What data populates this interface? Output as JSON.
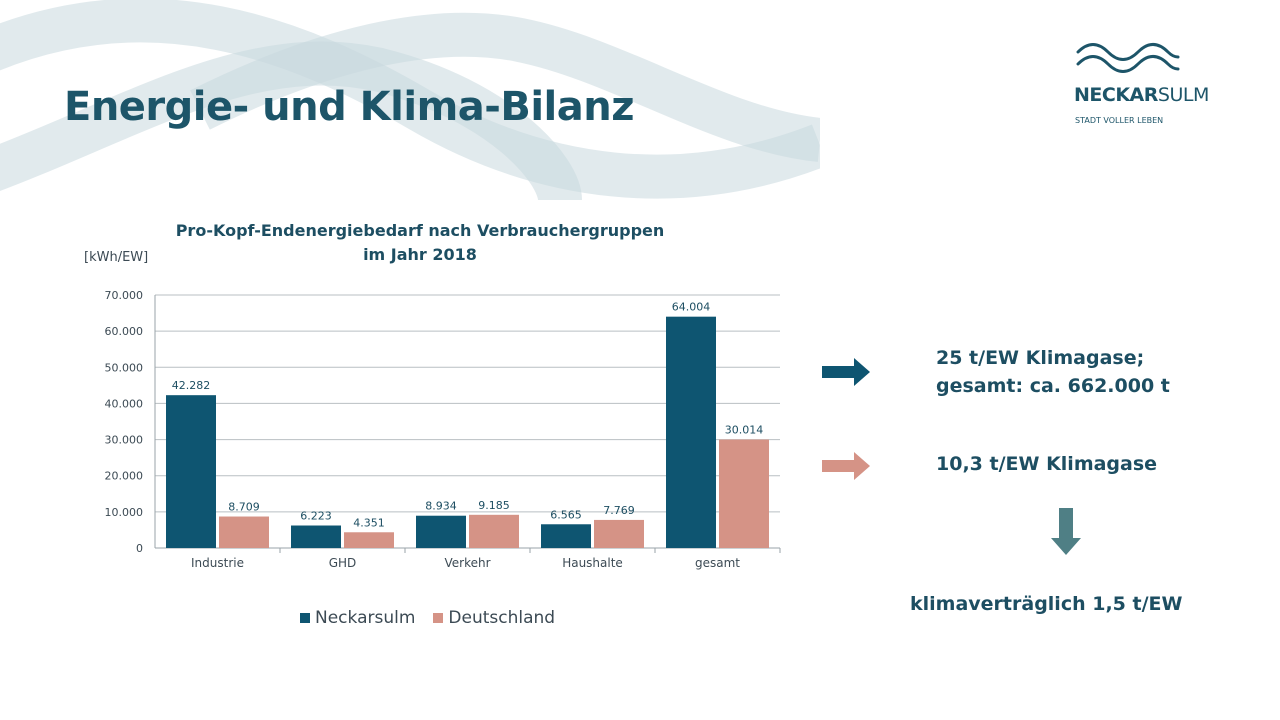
{
  "slide": {
    "title": "Energie- und Klima-Bilanz"
  },
  "logo": {
    "word_bold": "NECKAR",
    "word_regular": "SULM",
    "tagline": "STADT VOLLER LEBEN"
  },
  "chart_data": {
    "type": "bar",
    "title_line1": "Pro-Kopf-Endenergiebedarf nach Verbrauchergruppen",
    "title_line2": "im Jahr 2018",
    "ylabel": "[kWh/EW]",
    "categories": [
      "Industrie",
      "GHD",
      "Verkehr",
      "Haushalte",
      "gesamt"
    ],
    "series": [
      {
        "name": "Neckarsulm",
        "color": "#0e5571",
        "values": [
          42282,
          6223,
          8934,
          6565,
          64004
        ]
      },
      {
        "name": "Deutschland",
        "color": "#d59386",
        "values": [
          8709,
          4351,
          9185,
          7769,
          30014
        ]
      }
    ],
    "value_labels": [
      [
        "42.282",
        "6.223",
        "8.934",
        "6.565",
        "64.004"
      ],
      [
        "8.709",
        "4.351",
        "9.185",
        "7.769",
        "30.014"
      ]
    ],
    "ylim": [
      0,
      70000
    ],
    "yticks": [
      0,
      10000,
      20000,
      30000,
      40000,
      50000,
      60000,
      70000
    ],
    "ytick_labels": [
      "0",
      "10.000",
      "20.000",
      "30.000",
      "40.000",
      "50.000",
      "60.000",
      "70.000"
    ],
    "grid": true,
    "legend_position": "bottom"
  },
  "statements": {
    "neckarsulm_line1": "25 t/EW Klimagase;",
    "neckarsulm_line2": "gesamt: ca. 662.000 t",
    "deutschland": "10,3 t/EW Klimagase",
    "target": "klimaverträglich 1,5 t/EW"
  },
  "colors": {
    "primary": "#1d5569",
    "neckarsulm": "#0e5571",
    "deutschland": "#d59386",
    "down_arrow": "#4f7f85",
    "wave": "#dbe6ea"
  }
}
